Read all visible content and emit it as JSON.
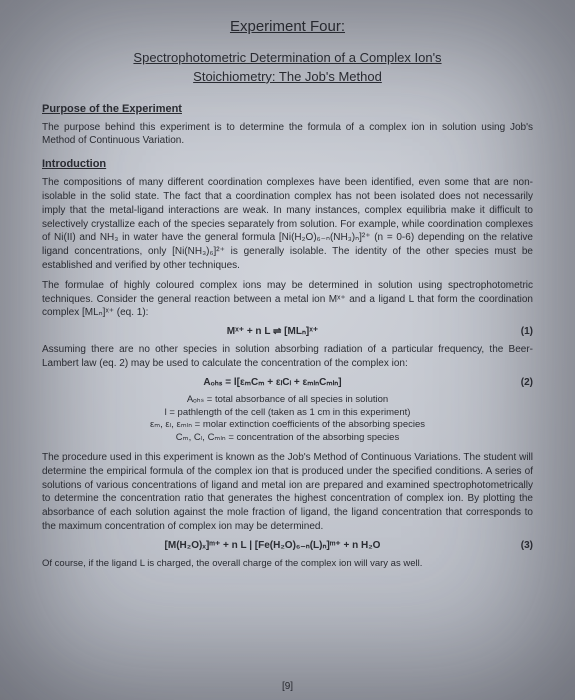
{
  "title_main": "Experiment Four:",
  "title_sub_line1": "Spectrophotometric Determination of a Complex Ion's",
  "title_sub_line2": "Stoichiometry: The Job's Method",
  "section_purpose_head": "Purpose of the Experiment",
  "purpose_para": "The purpose behind this experiment is to determine the formula of a complex ion in solution using Job's Method of Continuous Variation.",
  "section_intro_head": "Introduction",
  "intro_para1": "The compositions of many different coordination complexes have been identified, even some that are non-isolable in the solid state. The fact that a coordination complex has not been isolated does not necessarily imply that the metal-ligand interactions are weak. In many instances, complex equilibria make it difficult to selectively crystallize each of the species separately from solution. For example, while coordination complexes of Ni(II) and NH₃ in water have the general formula [Ni(H₂O)₆₋ₙ(NH₃)ₙ]²⁺ (n = 0-6) depending on the relative ligand concentrations, only [Ni(NH₃)₆]²⁺ is generally isolable. The identity of the other species must be established and verified by other techniques.",
  "intro_para2": "The formulae of highly coloured complex ions may be determined in solution using spectrophotometric techniques. Consider the general reaction between a metal ion Mˣ⁺ and a ligand L that form the coordination complex [MLₙ]ˣ⁺ (eq. 1):",
  "eq1_body": "Mˣ⁺ + n L ⇌ [MLₙ]ˣ⁺",
  "eq1_num": "(1)",
  "para_beer": "Assuming there are no other species in solution absorbing radiation of a particular frequency, the Beer-Lambert law (eq. 2) may be used to calculate the concentration of the complex ion:",
  "eq2_body": "Aₒₕₛ = l[εₘCₘ + εₗCₗ + εₘₗₙCₘₗₙ]",
  "eq2_num": "(2)",
  "def1": "Aₒₕₛ = total absorbance of all species in solution",
  "def2": "l = pathlength of the cell (taken as 1 cm in this experiment)",
  "def3": "εₘ, εₗ, εₘₗₙ = molar extinction coefficients of the absorbing species",
  "def4": "Cₘ, Cₗ, Cₘₗₙ = concentration of the absorbing species",
  "para_proc": "The procedure used in this experiment is known as the Job's Method of Continuous Variations. The student will determine the empirical formula of the complex ion that is produced under the specified conditions. A series of solutions of various concentrations of ligand and metal ion are prepared and examined spectrophotometrically to determine the concentration ratio that generates the highest concentration of complex ion. By plotting the absorbance of each solution against the mole fraction of ligand, the ligand concentration that corresponds to the maximum concentration of complex ion may be determined.",
  "eq3_body": "[M(H₂O)ₓ]ᵐ⁺ + n L | [Fe(H₂O)₆₋ₙ(L)ₙ]ᵐ⁺ + n H₂O",
  "eq3_num": "(3)",
  "para_ofcourse": "Of course, if the ligand L is charged, the overall charge of the complex ion will vary as well.",
  "page_num": "[9]"
}
